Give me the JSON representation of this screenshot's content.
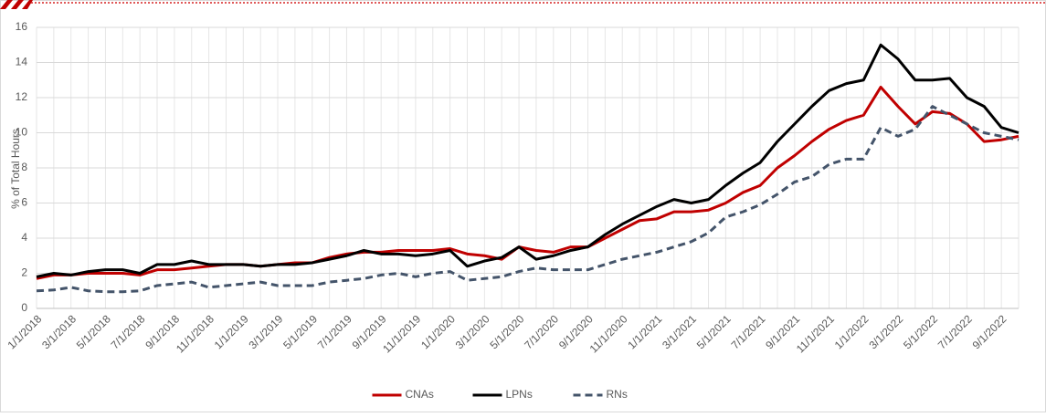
{
  "chart_data": {
    "type": "line",
    "y_label": "% of Total Hours",
    "categories": [
      "1/1/2018",
      null,
      "3/1/2018",
      null,
      "5/1/2018",
      null,
      "7/1/2018",
      null,
      "9/1/2018",
      null,
      "11/1/2018",
      null,
      "1/1/2019",
      null,
      "3/1/2019",
      null,
      "5/1/2019",
      null,
      "7/1/2019",
      null,
      "9/1/2019",
      null,
      "11/1/2019",
      null,
      "1/1/2020",
      null,
      "3/1/2020",
      null,
      "5/1/2020",
      null,
      "7/1/2020",
      null,
      "9/1/2020",
      null,
      "11/1/2020",
      null,
      "1/1/2021",
      null,
      "3/1/2021",
      null,
      "5/1/2021",
      null,
      "7/1/2021",
      null,
      "9/1/2021",
      null,
      "11/1/2021",
      null,
      "1/1/2022",
      null,
      "3/1/2022",
      null,
      "5/1/2022",
      null,
      "7/1/2022",
      null,
      "9/1/2022",
      null
    ],
    "series": [
      {
        "name": "CNAs",
        "color": "#c00000",
        "dash": false,
        "values": [
          1.7,
          1.9,
          1.9,
          2.0,
          2.0,
          2.0,
          1.9,
          2.2,
          2.2,
          2.3,
          2.4,
          2.5,
          2.5,
          2.4,
          2.5,
          2.6,
          2.6,
          2.9,
          3.1,
          3.2,
          3.2,
          3.3,
          3.3,
          3.3,
          3.4,
          3.1,
          3.0,
          2.8,
          3.5,
          3.3,
          3.2,
          3.5,
          3.5,
          4.0,
          4.5,
          5.0,
          5.1,
          5.5,
          5.5,
          5.6,
          6.0,
          6.6,
          7.0,
          8.0,
          8.7,
          9.5,
          10.2,
          10.7,
          11.0,
          12.6,
          11.5,
          10.5,
          11.2,
          11.1,
          10.5,
          9.5,
          9.6,
          9.8
        ]
      },
      {
        "name": "LPNs",
        "color": "#000000",
        "dash": false,
        "values": [
          1.8,
          2.0,
          1.9,
          2.1,
          2.2,
          2.2,
          2.0,
          2.5,
          2.5,
          2.7,
          2.5,
          2.5,
          2.5,
          2.4,
          2.5,
          2.5,
          2.6,
          2.8,
          3.0,
          3.3,
          3.1,
          3.1,
          3.0,
          3.1,
          3.3,
          2.4,
          2.7,
          2.9,
          3.5,
          2.8,
          3.0,
          3.3,
          3.5,
          4.2,
          4.8,
          5.3,
          5.8,
          6.2,
          6.0,
          6.2,
          7.0,
          7.7,
          8.3,
          9.5,
          10.5,
          11.5,
          12.4,
          12.8,
          13.0,
          15.0,
          14.2,
          13.0,
          13.0,
          13.1,
          12.0,
          11.5,
          10.3,
          10.0
        ]
      },
      {
        "name": "RNs",
        "color": "#44546a",
        "dash": true,
        "values": [
          1.0,
          1.05,
          1.2,
          1.0,
          0.95,
          0.95,
          1.0,
          1.3,
          1.4,
          1.5,
          1.2,
          1.3,
          1.4,
          1.5,
          1.3,
          1.3,
          1.3,
          1.5,
          1.6,
          1.7,
          1.9,
          2.0,
          1.8,
          2.0,
          2.1,
          1.6,
          1.7,
          1.8,
          2.1,
          2.3,
          2.2,
          2.2,
          2.2,
          2.5,
          2.8,
          3.0,
          3.2,
          3.5,
          3.8,
          4.3,
          5.2,
          5.5,
          5.9,
          6.5,
          7.2,
          7.5,
          8.2,
          8.5,
          8.5,
          10.3,
          9.8,
          10.2,
          11.5,
          11.0,
          10.5,
          10.0,
          9.8,
          9.6
        ]
      }
    ],
    "ylim": [
      0,
      16
    ],
    "yticks": [
      0,
      2,
      4,
      6,
      8,
      10,
      12,
      14,
      16
    ],
    "grid": true,
    "legend": "bottom"
  }
}
